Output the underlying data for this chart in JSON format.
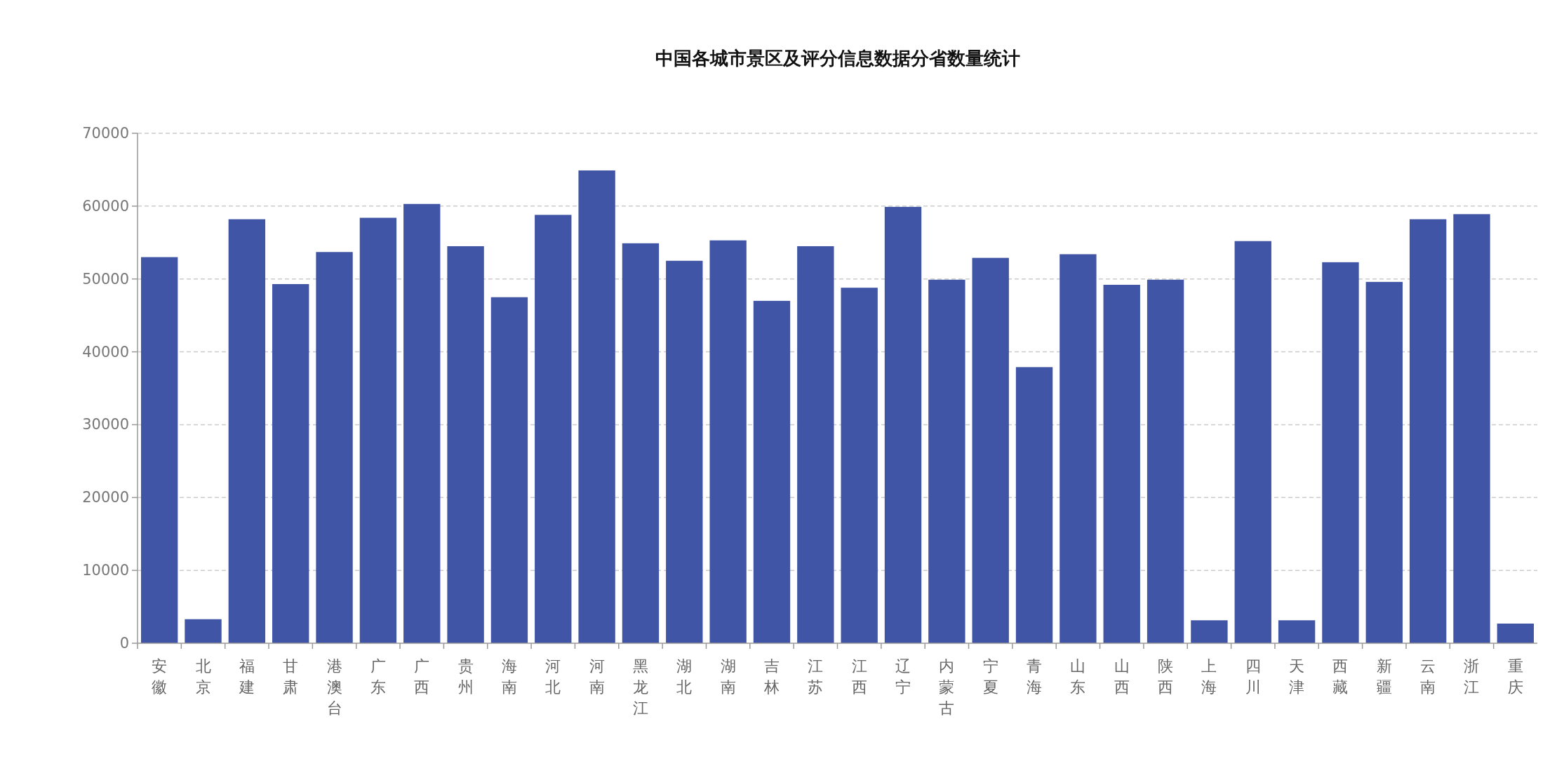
{
  "chart_data": {
    "type": "bar",
    "title": "中国各城市景区及评分信息数据分省数量统计",
    "categories": [
      "安徽",
      "北京",
      "福建",
      "甘肃",
      "港澳台",
      "广东",
      "广西",
      "贵州",
      "海南",
      "河北",
      "河南",
      "黑龙江",
      "湖北",
      "湖南",
      "吉林",
      "江苏",
      "江西",
      "辽宁",
      "内蒙古",
      "宁夏",
      "青海",
      "山东",
      "山西",
      "陕西",
      "上海",
      "四川",
      "天津",
      "西藏",
      "新疆",
      "云南",
      "浙江",
      "重庆"
    ],
    "values": [
      53000,
      3300,
      58200,
      49300,
      53700,
      58400,
      60300,
      54500,
      47500,
      58800,
      64900,
      54900,
      52500,
      55300,
      47000,
      54500,
      48800,
      59900,
      49900,
      52900,
      37900,
      53400,
      49200,
      49900,
      3150,
      55200,
      3150,
      52300,
      49600,
      58200,
      58900,
      2700
    ],
    "color": "#4055a5",
    "ylim": [
      0,
      70000
    ],
    "yticks": [
      0,
      10000,
      20000,
      30000,
      40000,
      50000,
      60000,
      70000
    ],
    "grid": "y"
  }
}
